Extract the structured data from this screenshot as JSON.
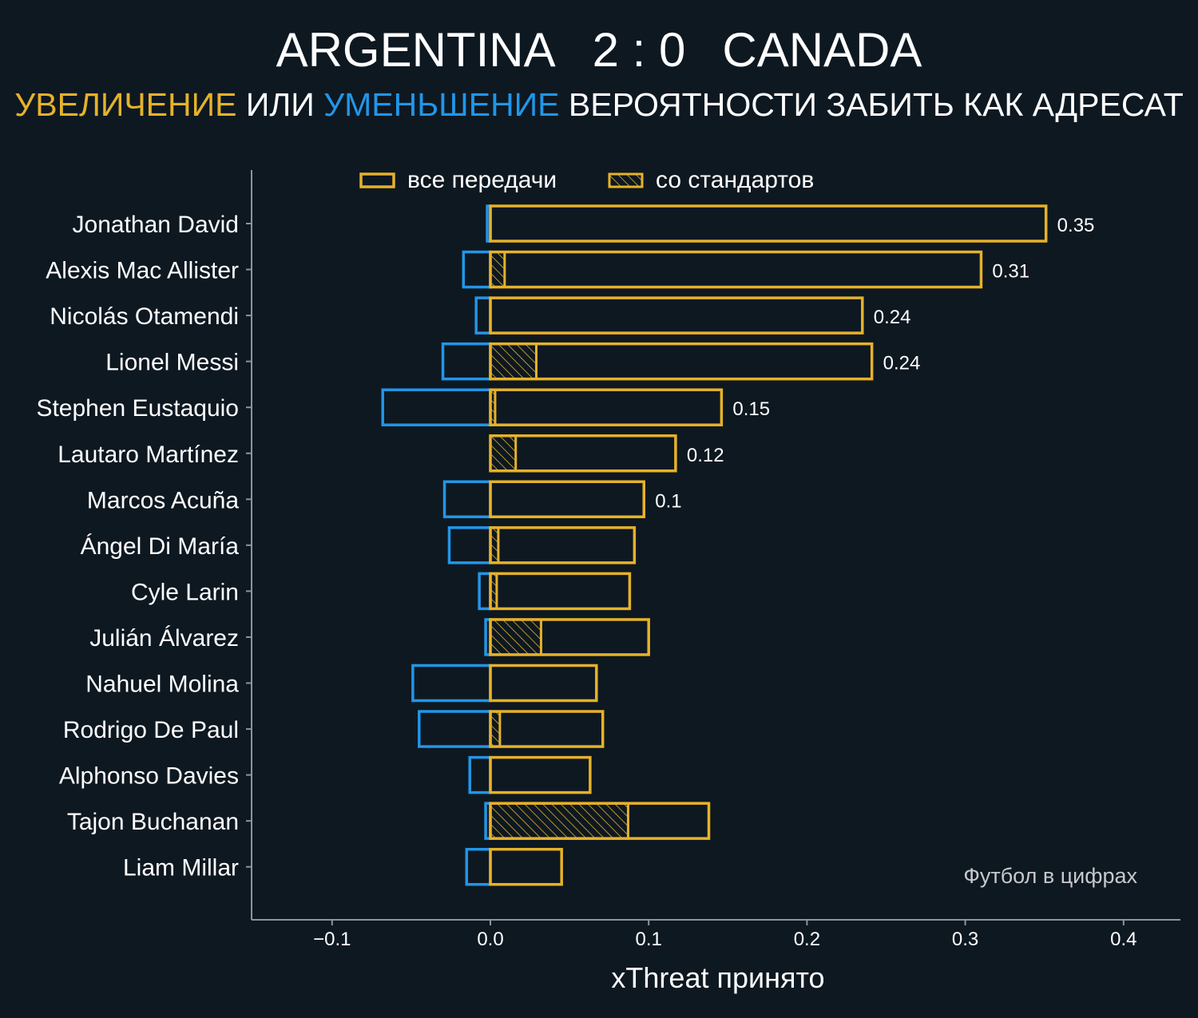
{
  "header": {
    "team_home": "ARGENTINA",
    "score": "2 : 0",
    "team_away": "CANADA"
  },
  "subtitle": {
    "increase": "УВЕЛИЧЕНИЕ",
    "or": "ИЛИ",
    "decrease": "УМЕНЬШЕНИЕ",
    "rest": "ВЕРОЯТНОСТИ ЗАБИТЬ КАК АДРЕСАТ"
  },
  "colors": {
    "background": "#0e1821",
    "increase": "#e6b22a",
    "decrease": "#2196e8",
    "text": "#ffffff",
    "axis": "#8c959c",
    "watermark": "#c7c9cc"
  },
  "chart_data": {
    "type": "bar",
    "orientation": "horizontal",
    "title": "ARGENTINA 2 : 0 CANADA",
    "xlabel": "xThreat принято",
    "xlim": [
      -0.15,
      0.435
    ],
    "xticks": [
      -0.1,
      0.0,
      0.1,
      0.2,
      0.3,
      0.4
    ],
    "xtick_labels": [
      "−0.1",
      "0.0",
      "0.1",
      "0.2",
      "0.3",
      "0.4"
    ],
    "legend": {
      "position": "top",
      "entries": [
        {
          "label": "все передачи",
          "style": "outline"
        },
        {
          "label": "со стандартов",
          "style": "hatched"
        }
      ]
    },
    "watermark": "Футбол в цифрах",
    "players": [
      {
        "name": "Jonathan David",
        "positive": 0.351,
        "negative": -0.002,
        "set_piece": 0.0,
        "label": "0.35"
      },
      {
        "name": "Alexis Mac Allister",
        "positive": 0.31,
        "negative": -0.017,
        "set_piece": 0.009,
        "label": "0.31"
      },
      {
        "name": "Nicolás Otamendi",
        "positive": 0.235,
        "negative": -0.009,
        "set_piece": 0.0,
        "label": "0.24"
      },
      {
        "name": "Lionel Messi",
        "positive": 0.241,
        "negative": -0.03,
        "set_piece": 0.029,
        "label": "0.24"
      },
      {
        "name": "Stephen Eustaquio",
        "positive": 0.146,
        "negative": -0.068,
        "set_piece": 0.003,
        "label": "0.15"
      },
      {
        "name": "Lautaro Martínez",
        "positive": 0.117,
        "negative": 0.0,
        "set_piece": 0.016,
        "label": "0.12"
      },
      {
        "name": "Marcos Acuña",
        "positive": 0.097,
        "negative": -0.029,
        "set_piece": 0.0,
        "label": "0.1"
      },
      {
        "name": "Ángel Di María",
        "positive": 0.091,
        "negative": -0.026,
        "set_piece": 0.005,
        "label": ""
      },
      {
        "name": "Cyle Larin",
        "positive": 0.088,
        "negative": -0.007,
        "set_piece": 0.004,
        "label": ""
      },
      {
        "name": "Julián Álvarez",
        "positive": 0.1,
        "negative": -0.003,
        "set_piece": 0.032,
        "label": ""
      },
      {
        "name": "Nahuel Molina",
        "positive": 0.067,
        "negative": -0.049,
        "set_piece": 0.0,
        "label": ""
      },
      {
        "name": "Rodrigo De Paul",
        "positive": 0.071,
        "negative": -0.045,
        "set_piece": 0.006,
        "label": ""
      },
      {
        "name": "Alphonso Davies",
        "positive": 0.063,
        "negative": -0.013,
        "set_piece": 0.0,
        "label": ""
      },
      {
        "name": "Tajon Buchanan",
        "positive": 0.138,
        "negative": -0.003,
        "set_piece": 0.087,
        "label": ""
      },
      {
        "name": "Liam Millar",
        "positive": 0.045,
        "negative": -0.015,
        "set_piece": 0.0,
        "label": ""
      }
    ]
  }
}
